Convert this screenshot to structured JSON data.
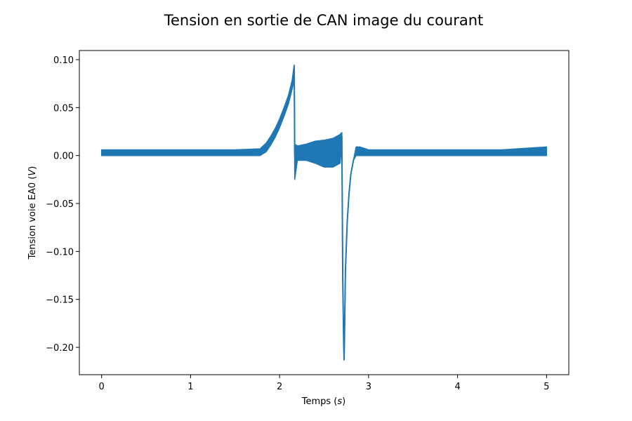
{
  "chart_data": {
    "type": "line",
    "title": "Tension en sortie de CAN image du courant",
    "xlabel": {
      "main": "Temps (",
      "unit": "s",
      "close": ")"
    },
    "ylabel": {
      "main": "Tension voie EA0 (",
      "unit": "V",
      "close": ")"
    },
    "xlim": [
      -0.25,
      5.25
    ],
    "ylim": [
      -0.2285,
      0.1095
    ],
    "x_ticks": [
      0,
      1,
      2,
      3,
      4,
      5
    ],
    "x_tick_labels": [
      "0",
      "1",
      "2",
      "3",
      "4",
      "5"
    ],
    "y_ticks": [
      0.1,
      0.05,
      0.0,
      -0.05,
      -0.1,
      -0.15,
      -0.2
    ],
    "y_tick_labels": [
      "0.10",
      "0.05",
      "0.00",
      "−0.05",
      "−0.10",
      "−0.15",
      "−0.20"
    ],
    "grid": false,
    "series": [
      {
        "color": "#1f77b4",
        "x": [
          0.0,
          0.3,
          0.6,
          0.9,
          1.2,
          1.5,
          1.78,
          1.85,
          1.9,
          1.95,
          2.0,
          2.05,
          2.1,
          2.14,
          2.165,
          2.17,
          2.2,
          2.3,
          2.4,
          2.5,
          2.6,
          2.68,
          2.7,
          2.71,
          2.72,
          2.725,
          2.73,
          2.74,
          2.76,
          2.78,
          2.8,
          2.83,
          2.86,
          2.9,
          3.0,
          3.5,
          4.0,
          4.5,
          5.0
        ],
        "y": [
          0.003,
          0.003,
          0.003,
          0.003,
          0.003,
          0.003,
          0.004,
          0.01,
          0.017,
          0.025,
          0.035,
          0.047,
          0.06,
          0.075,
          0.094,
          0.0,
          0.003,
          0.002,
          0.002,
          0.002,
          0.002,
          0.002,
          0.02,
          -0.13,
          -0.195,
          -0.213,
          -0.19,
          -0.12,
          -0.07,
          -0.04,
          -0.02,
          -0.005,
          0.003,
          0.003,
          0.003,
          0.003,
          0.003,
          0.003,
          0.003
        ],
        "y_low": [
          0.0,
          0.0,
          0.0,
          0.0,
          0.0,
          0.0,
          0.0,
          0.004,
          0.011,
          0.019,
          0.029,
          0.041,
          0.054,
          0.069,
          0.078,
          -0.025,
          -0.005,
          -0.005,
          -0.008,
          -0.012,
          -0.012,
          -0.008,
          0.012,
          -0.13,
          -0.195,
          -0.213,
          -0.19,
          -0.12,
          -0.07,
          -0.04,
          -0.02,
          -0.005,
          0.0,
          0.0,
          0.0,
          0.0,
          0.0,
          0.0,
          0.0
        ],
        "y_high": [
          0.006,
          0.006,
          0.006,
          0.006,
          0.006,
          0.006,
          0.007,
          0.013,
          0.02,
          0.028,
          0.038,
          0.05,
          0.063,
          0.078,
          0.094,
          0.012,
          0.01,
          0.012,
          0.015,
          0.016,
          0.018,
          0.022,
          0.024,
          -0.13,
          -0.195,
          -0.213,
          -0.19,
          -0.12,
          -0.07,
          -0.04,
          -0.02,
          -0.005,
          0.009,
          0.009,
          0.006,
          0.006,
          0.006,
          0.006,
          0.009
        ]
      }
    ]
  }
}
